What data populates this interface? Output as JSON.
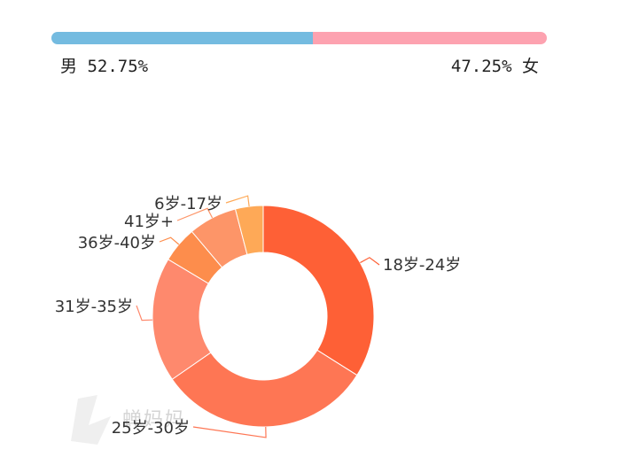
{
  "gender": {
    "male": {
      "label": "男",
      "percent_text": "52.75%",
      "value": 52.75,
      "color": "#74bbe0"
    },
    "female": {
      "label": "女",
      "percent_text": "47.25%",
      "value": 47.25,
      "color": "#fda2b0"
    }
  },
  "chart_data": {
    "type": "pie",
    "donut": true,
    "title": "",
    "slices": [
      {
        "label": "18岁-24岁",
        "value": 33.5,
        "color": "#fe6036"
      },
      {
        "label": "25岁-30岁",
        "value": 31.0,
        "color": "#fe7654"
      },
      {
        "label": "31岁-35岁",
        "value": 18.0,
        "color": "#fe896d"
      },
      {
        "label": "36岁-40岁",
        "value": 5.2,
        "color": "#fd8d4c"
      },
      {
        "label": "41岁+",
        "value": 7.0,
        "color": "#fd9568"
      },
      {
        "label": "6岁-17岁",
        "value": 4.0,
        "color": "#fea957"
      }
    ]
  },
  "watermark": {
    "text": "蝉妈妈"
  }
}
